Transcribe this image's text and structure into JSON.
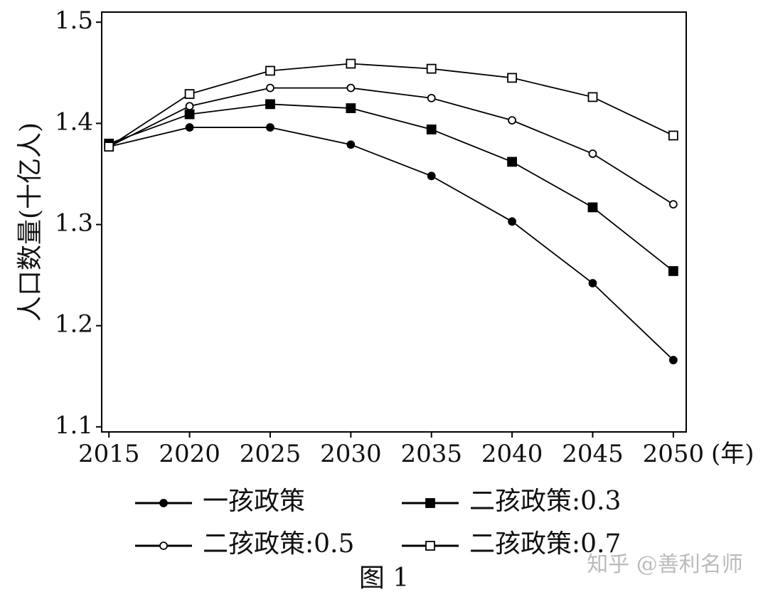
{
  "chart_data": {
    "type": "line",
    "ylabel": "人口数量(十亿人)",
    "xlabel": "(年)",
    "caption": "图 1",
    "watermark": "知乎 @善利名师",
    "x": [
      2015,
      2020,
      2025,
      2030,
      2035,
      2040,
      2045,
      2050
    ],
    "xlim": [
      2014.55,
      2050.8
    ],
    "xticks": [
      2015,
      2020,
      2025,
      2030,
      2035,
      2040,
      2045,
      2050
    ],
    "ylim": [
      1.095,
      1.51
    ],
    "yticks": [
      1.1,
      1.2,
      1.3,
      1.4,
      1.5
    ],
    "series": [
      {
        "name": "一孩政策",
        "color": "#000000",
        "marker": "circle",
        "filled": true,
        "values": [
          1.377,
          1.396,
          1.396,
          1.379,
          1.348,
          1.303,
          1.242,
          1.166
        ]
      },
      {
        "name": "二孩政策:0.3",
        "color": "#000000",
        "marker": "square",
        "filled": true,
        "values": [
          1.38,
          1.409,
          1.419,
          1.415,
          1.394,
          1.362,
          1.317,
          1.254
        ]
      },
      {
        "name": "二孩政策:0.5",
        "color": "#000000",
        "marker": "circle",
        "filled": false,
        "values": [
          1.377,
          1.417,
          1.435,
          1.435,
          1.425,
          1.403,
          1.37,
          1.32
        ]
      },
      {
        "name": "二孩政策:0.7",
        "color": "#000000",
        "marker": "square",
        "filled": false,
        "values": [
          1.377,
          1.429,
          1.452,
          1.459,
          1.454,
          1.445,
          1.426,
          1.388
        ]
      }
    ]
  }
}
